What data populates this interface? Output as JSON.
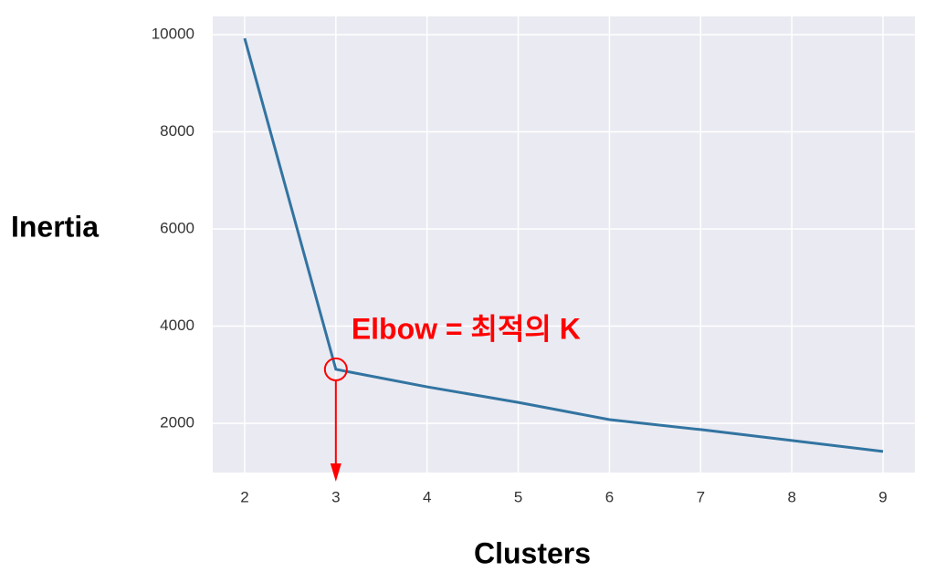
{
  "chart_data": {
    "type": "line",
    "x_label": "Clusters",
    "y_label": "Inertia",
    "annotation": "Elbow = 최적의 K",
    "x": [
      2,
      3,
      4,
      5,
      6,
      7,
      8,
      9
    ],
    "values": [
      9925,
      3110,
      2750,
      2430,
      2075,
      1870,
      1645,
      1420
    ],
    "color": "#3274a1",
    "annotation_color": "#ff0000",
    "xlim": [
      1.65,
      9.35
    ],
    "ylim": [
      986,
      10375
    ],
    "xticks": [
      2,
      3,
      4,
      5,
      6,
      7,
      8,
      9
    ],
    "yticks": [
      2000,
      4000,
      6000,
      8000,
      10000
    ],
    "grid": true,
    "background": "#eaeaf2"
  }
}
